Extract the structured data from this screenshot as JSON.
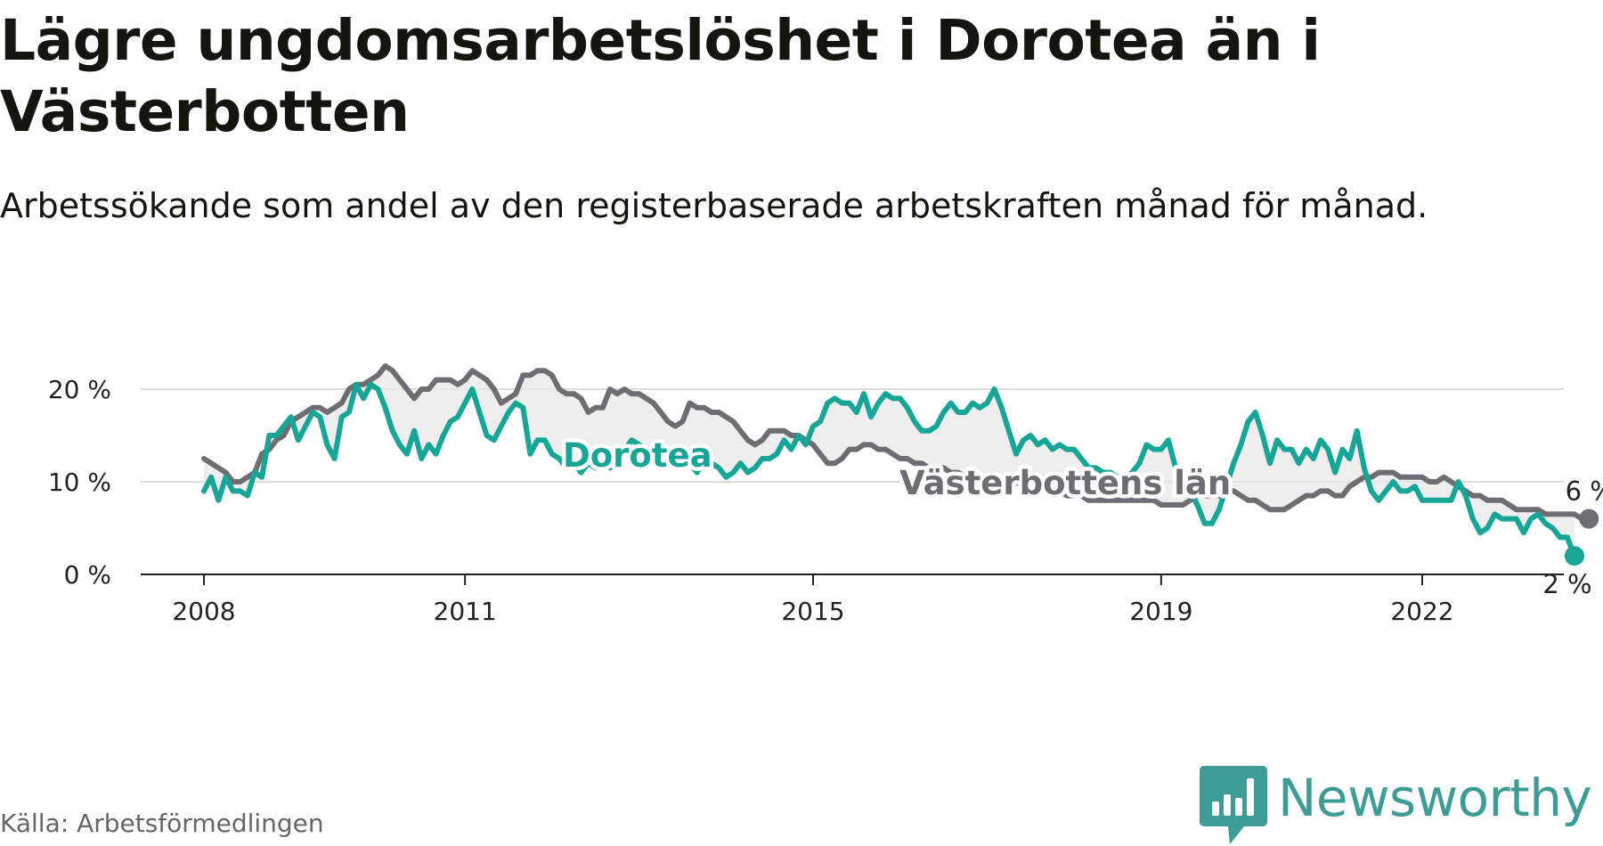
{
  "page": {
    "title": "Lägre ungdomsarbetslöshet i Dorotea än i Västerbotten",
    "subtitle": "Arbetssökande som andel av den registerbaserade arbetskraften månad för månad.",
    "source": "Källa: Arbetsförmedlingen",
    "brand": "Newsworthy"
  },
  "colors": {
    "dorotea": "#16a597",
    "vasterbotten": "#6e6d73",
    "band": "#e8e8e8",
    "grid": "#dddddd",
    "axis": "#222222",
    "brand": "#3d9c95"
  },
  "chart_data": {
    "type": "line",
    "title": "Lägre ungdomsarbetslöshet i Dorotea än i Västerbotten",
    "xlabel": "",
    "ylabel": "",
    "ylim": [
      0,
      22
    ],
    "y_ticks": [
      0,
      10,
      20
    ],
    "y_tick_labels": [
      "0 %",
      "10 %",
      "20 %"
    ],
    "x_ticks": [
      2008,
      2011,
      2015,
      2019,
      2022
    ],
    "x_tick_labels": [
      "2008",
      "2011",
      "2015",
      "2019",
      "2022"
    ],
    "grid": true,
    "series": [
      {
        "name": "Dorotea",
        "label": "Dorotea",
        "end_label": "2 %",
        "start": 2008.0,
        "step": 0.08333,
        "values": [
          9,
          10.5,
          8,
          10.5,
          9,
          9,
          8.5,
          11,
          10.5,
          15,
          15,
          16,
          17,
          14.5,
          16,
          17.5,
          17,
          14,
          12.5,
          17,
          17.5,
          20.5,
          19,
          20.5,
          20,
          18,
          15.5,
          14,
          13,
          15.5,
          12.5,
          14,
          13,
          15,
          16.5,
          17,
          18.5,
          20,
          17.5,
          15,
          14.5,
          16,
          17.5,
          18.5,
          18,
          13,
          14.5,
          14.5,
          13,
          12.5,
          11.5,
          12,
          11,
          12,
          11.5,
          12.5,
          11.5,
          12.5,
          13.5,
          14.5,
          14,
          13.5,
          13,
          12.5,
          12,
          12.5,
          11.5,
          12,
          11,
          12.5,
          12,
          11.5,
          10.5,
          11,
          12,
          11,
          11.5,
          12.5,
          12.5,
          13,
          14.5,
          13.5,
          15,
          14,
          16,
          16.5,
          18.5,
          19,
          18.5,
          18.5,
          17.5,
          19.5,
          17,
          18.5,
          19.5,
          19,
          19,
          18,
          16.5,
          15.5,
          15.5,
          16,
          17.5,
          18.5,
          17.5,
          17.5,
          18.5,
          18,
          18.5,
          20,
          18,
          15.5,
          13,
          14.5,
          15,
          14,
          14.5,
          13.5,
          14,
          13.5,
          13.5,
          12.5,
          11.5,
          11.5,
          11,
          11,
          10.5,
          10,
          11,
          12,
          14,
          13.5,
          13.5,
          14.5,
          11.5,
          10.5,
          9,
          7.5,
          5.5,
          5.5,
          7,
          9.5,
          12,
          14,
          16.5,
          17.5,
          15,
          12,
          14.5,
          13.5,
          13.5,
          12,
          13.5,
          12.5,
          14.5,
          13.5,
          11,
          13.5,
          12.5,
          15.5,
          11.5,
          9,
          8,
          9,
          10,
          9,
          9,
          9.5,
          8,
          8,
          8,
          8,
          8,
          10,
          8.5,
          6,
          4.5,
          5,
          6.5,
          6,
          6,
          6,
          4.5,
          6,
          6.5,
          5.5,
          5,
          4,
          4,
          2
        ]
      },
      {
        "name": "Västerbottens län",
        "label": "Västerbottens län",
        "end_label": "6 %",
        "start": 2008.0,
        "step": 0.08333,
        "values": [
          12.5,
          12,
          11.5,
          11,
          10,
          10,
          10.5,
          11,
          13,
          13.5,
          14.5,
          15,
          16.5,
          17,
          17.5,
          18,
          18,
          17.5,
          18,
          18.5,
          20,
          20.5,
          20.5,
          21,
          21.5,
          22.5,
          22,
          21,
          20,
          19,
          20,
          20,
          21,
          21,
          21,
          20.5,
          21,
          22,
          21.5,
          21,
          20,
          18.5,
          19,
          19.5,
          21.5,
          21.5,
          22,
          22,
          21.5,
          20,
          19.5,
          19.5,
          19,
          17.5,
          18,
          18,
          20,
          19.5,
          20,
          19.5,
          19.5,
          19,
          18.5,
          17.5,
          16.5,
          16,
          16.5,
          18.5,
          18,
          18,
          17.5,
          17.5,
          17,
          16.5,
          15.5,
          14.5,
          14,
          14.5,
          15.5,
          15.5,
          15.5,
          15,
          15,
          14.5,
          14,
          13,
          12,
          12,
          12.5,
          13.5,
          13.5,
          14,
          14,
          13.5,
          13.5,
          13,
          12.5,
          12.5,
          12,
          12,
          11.5,
          11.5,
          11.5,
          11,
          11,
          10.5,
          10.5,
          10.5,
          10,
          10,
          10,
          10,
          10,
          9.5,
          9.5,
          9.5,
          9,
          9,
          9,
          8.5,
          8.5,
          8.5,
          8,
          8,
          8,
          8,
          8,
          8,
          8,
          8,
          8,
          8,
          7.5,
          7.5,
          7.5,
          7.5,
          8,
          8.5,
          8.5,
          8.5,
          8.5,
          9,
          9,
          8.5,
          8,
          8,
          7.5,
          7,
          7,
          7,
          7.5,
          8,
          8.5,
          8.5,
          9,
          9,
          8.5,
          8.5,
          9.5,
          10,
          10.5,
          10.5,
          11,
          11,
          11,
          10.5,
          10.5,
          10.5,
          10.5,
          10,
          10,
          10.5,
          10,
          9.5,
          9,
          8.5,
          8.5,
          8,
          8,
          8,
          7.5,
          7,
          7,
          7,
          7,
          6.5,
          6.5,
          6.5,
          6.5,
          6.5,
          6,
          6
        ]
      }
    ]
  }
}
